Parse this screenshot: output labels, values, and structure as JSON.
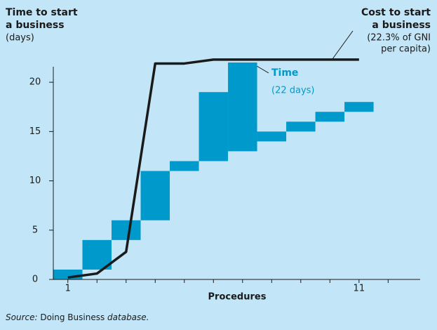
{
  "chart_data": {
    "type": "floating-bar",
    "title": [
      "Time to start",
      "a business"
    ],
    "y_unit": "(days)",
    "xlabel": "Procedures",
    "xlim": [
      0.5,
      13.1
    ],
    "xticks": [
      1,
      11
    ],
    "xminor_ticks": [
      2,
      3,
      4,
      5,
      6,
      7,
      8,
      9,
      10,
      12
    ],
    "ylim": [
      0,
      23
    ],
    "yticks": [
      0,
      5,
      10,
      15,
      20
    ],
    "x": [
      1,
      2,
      3,
      4,
      5,
      6,
      7,
      8,
      9,
      10,
      11
    ],
    "series": [
      {
        "name": "Time",
        "color": "#0099cc",
        "start": [
          0,
          1,
          4,
          6,
          11,
          12,
          13,
          14,
          15,
          16,
          17
        ],
        "values": [
          1,
          3,
          2,
          5,
          1,
          7,
          9,
          1,
          1,
          1,
          1
        ]
      },
      {
        "name": "Cost to start a business",
        "color": "#1a1a1a",
        "x": [
          1,
          2,
          3,
          4,
          5,
          6,
          11
        ],
        "values": [
          0.2,
          0.6,
          2.8,
          21.9,
          21.9,
          22.3,
          22.3
        ]
      }
    ],
    "annotations": {
      "time": {
        "title": "Time",
        "note": "(22 days)"
      },
      "cost": {
        "title": [
          "Cost to start",
          "a business"
        ],
        "note": [
          "(22.3% of GNI",
          "per capita)"
        ]
      }
    },
    "source": {
      "prefix": "Source: ",
      "emphasis": "Doing Business",
      "suffix": " database."
    }
  }
}
